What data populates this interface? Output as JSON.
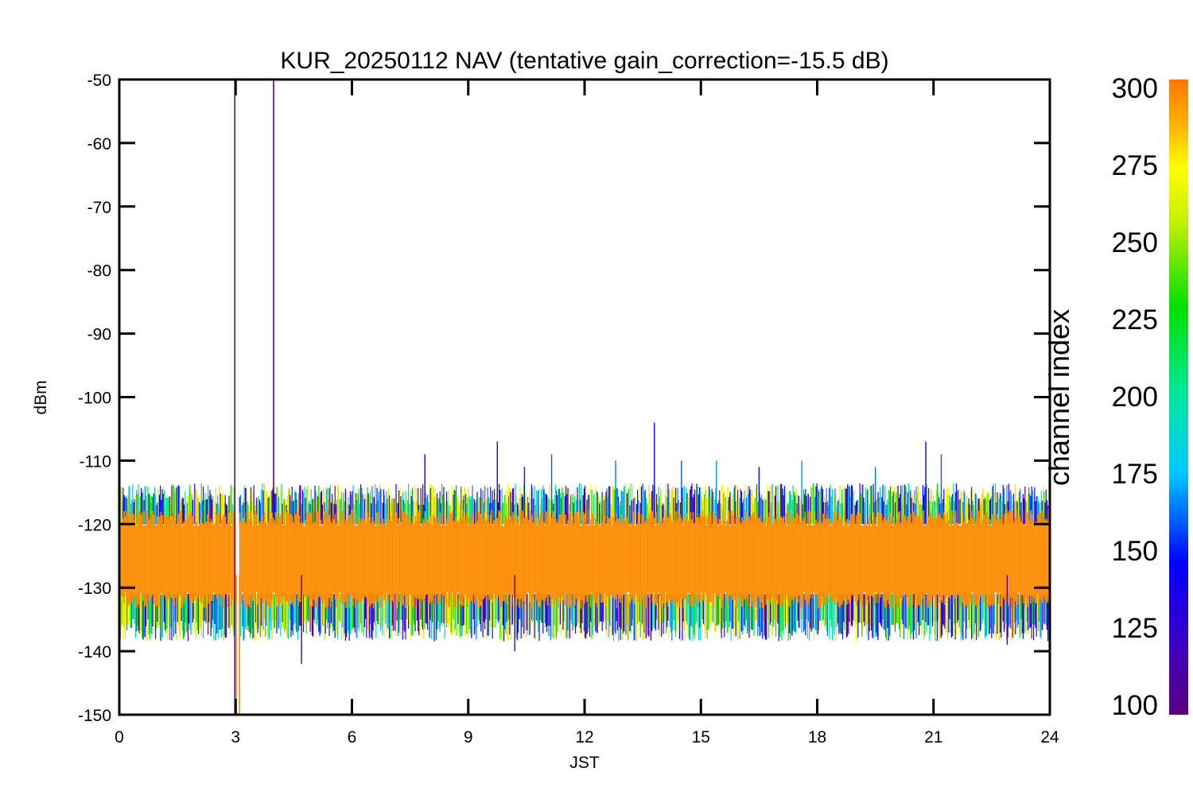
{
  "chart_data": {
    "type": "line",
    "title": "KUR_20250112 NAV (tentative gain_correction=-15.5 dB)",
    "xlabel": "JST",
    "ylabel": "dBm",
    "xlim": [
      0,
      24
    ],
    "ylim": [
      -150,
      -50
    ],
    "x_ticks": [
      "0",
      "3",
      "6",
      "9",
      "12",
      "15",
      "18",
      "21",
      "24"
    ],
    "y_ticks": [
      "-50",
      "-60",
      "-70",
      "-80",
      "-90",
      "-100",
      "-110",
      "-120",
      "-130",
      "-140",
      "-150"
    ],
    "x_tick_values": [
      0,
      3,
      6,
      9,
      12,
      15,
      18,
      21,
      24
    ],
    "y_tick_values": [
      -50,
      -60,
      -70,
      -80,
      -90,
      -100,
      -110,
      -120,
      -130,
      -140,
      -150
    ],
    "colorbar": {
      "label": "channel index",
      "range": [
        100,
        300
      ],
      "ticks": [
        "100",
        "125",
        "150",
        "175",
        "200",
        "225",
        "250",
        "275",
        "300"
      ],
      "tick_values": [
        100,
        125,
        150,
        175,
        200,
        225,
        250,
        275,
        300
      ],
      "colormap": "rainbow (purple-blue-cyan-green-yellow-orange)"
    },
    "noise_band": {
      "core_dBm": [
        -132,
        -119
      ],
      "outer_dBm": [
        -136,
        -116
      ],
      "core_color": "#ff8c00"
    },
    "spikes": [
      {
        "x": 2.98,
        "y_top": -50,
        "y_bottom": -150,
        "channel": 100
      },
      {
        "x": 3.98,
        "y_top": -50,
        "y_bottom": -117,
        "channel": 105
      },
      {
        "x": 3.02,
        "y_top": -128,
        "y_bottom": -150,
        "channel": 295
      },
      {
        "x": 3.1,
        "y_top": -128,
        "y_bottom": -150,
        "channel": 295
      },
      {
        "x": 7.88,
        "y_top": -109,
        "y_bottom": -118,
        "channel": 140
      },
      {
        "x": 9.75,
        "y_top": -107,
        "y_bottom": -119,
        "channel": 140
      },
      {
        "x": 10.45,
        "y_top": -111,
        "y_bottom": -119,
        "channel": 150
      },
      {
        "x": 11.15,
        "y_top": -109,
        "y_bottom": -119,
        "channel": 160
      },
      {
        "x": 12.8,
        "y_top": -110,
        "y_bottom": -119,
        "channel": 165
      },
      {
        "x": 13.8,
        "y_top": -104,
        "y_bottom": -119,
        "channel": 140
      },
      {
        "x": 14.5,
        "y_top": -110,
        "y_bottom": -119,
        "channel": 160
      },
      {
        "x": 15.4,
        "y_top": -110,
        "y_bottom": -119,
        "channel": 170
      },
      {
        "x": 16.5,
        "y_top": -111,
        "y_bottom": -119,
        "channel": 150
      },
      {
        "x": 17.6,
        "y_top": -110,
        "y_bottom": -119,
        "channel": 170
      },
      {
        "x": 19.5,
        "y_top": -111,
        "y_bottom": -119,
        "channel": 165
      },
      {
        "x": 20.8,
        "y_top": -107,
        "y_bottom": -119,
        "channel": 140
      },
      {
        "x": 21.2,
        "y_top": -109,
        "y_bottom": -119,
        "channel": 160
      },
      {
        "x": 4.7,
        "y_top": -128,
        "y_bottom": -142,
        "channel": 110
      },
      {
        "x": 10.2,
        "y_top": -128,
        "y_bottom": -140,
        "channel": 110
      },
      {
        "x": 22.9,
        "y_top": -128,
        "y_bottom": -139,
        "channel": 110
      }
    ],
    "gap_x": [
      3.0,
      3.1
    ]
  }
}
